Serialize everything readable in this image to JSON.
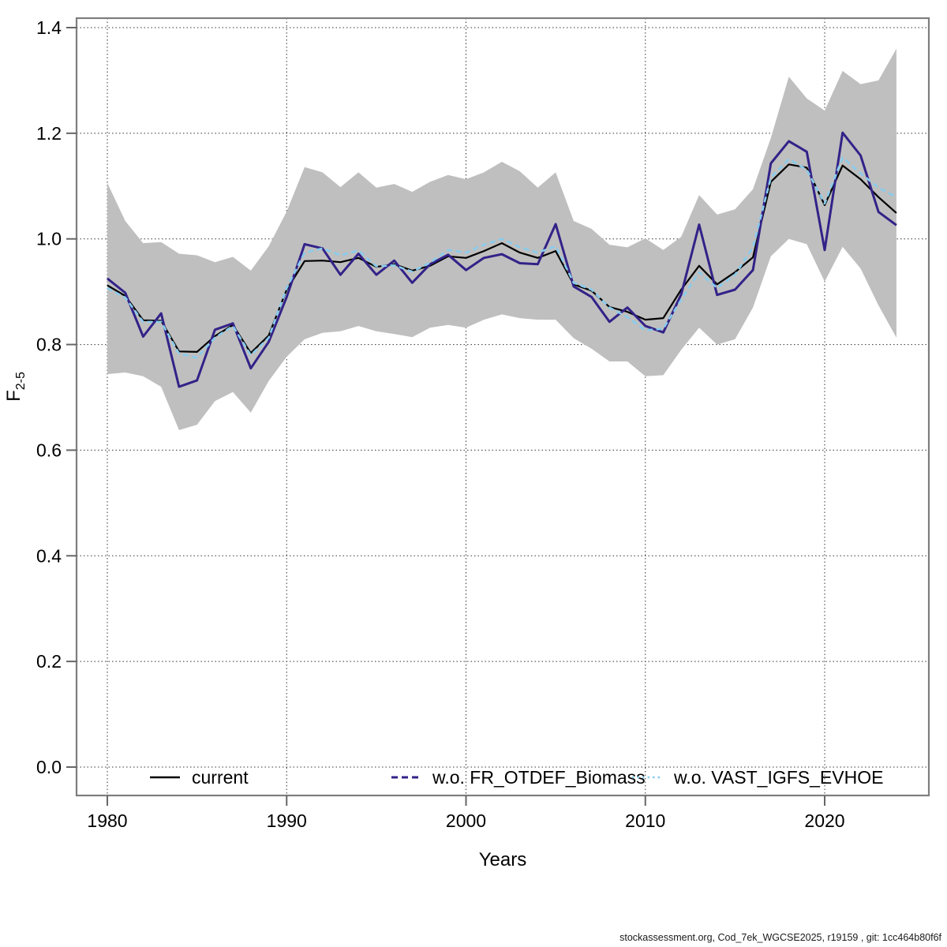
{
  "footer": {
    "text": "stockassessment.org, Cod_7ek_WGCSE2025, r19159 , git: 1cc464b80f6f"
  },
  "chart_data": {
    "type": "line",
    "title": "",
    "xlabel": "Years",
    "ylabel": "F",
    "ylabel_subscript": "2-5",
    "x_ticks": [
      1980,
      1990,
      2000,
      2010,
      2020
    ],
    "y_ticks": [
      0.0,
      0.2,
      0.4,
      0.6,
      0.8,
      1.0,
      1.2,
      1.4
    ],
    "xlim": [
      1978.3,
      2025.7
    ],
    "ylim": [
      -0.05,
      1.42
    ],
    "grid": "dotted gridlines at all x and y ticks",
    "legend_position": "bottom inside plot, no border",
    "band_color": "#bfbfbf",
    "axis_color": "#7e7e7e",
    "years": [
      1980,
      1981,
      1982,
      1983,
      1984,
      1985,
      1986,
      1987,
      1988,
      1989,
      1990,
      1991,
      1992,
      1993,
      1994,
      1995,
      1996,
      1997,
      1998,
      1999,
      2000,
      2001,
      2002,
      2003,
      2004,
      2005,
      2006,
      2007,
      2008,
      2009,
      2010,
      2011,
      2012,
      2013,
      2014,
      2015,
      2016,
      2017,
      2018,
      2019,
      2020,
      2021,
      2022,
      2023,
      2024
    ],
    "band": {
      "name": "confidence interval of current",
      "low": [
        0.744,
        0.747,
        0.74,
        0.72,
        0.638,
        0.648,
        0.693,
        0.71,
        0.671,
        0.731,
        0.777,
        0.81,
        0.822,
        0.825,
        0.835,
        0.825,
        0.82,
        0.814,
        0.832,
        0.837,
        0.832,
        0.847,
        0.857,
        0.85,
        0.847,
        0.847,
        0.812,
        0.792,
        0.768,
        0.768,
        0.74,
        0.742,
        0.79,
        0.832,
        0.8,
        0.81,
        0.87,
        0.967,
        1.0,
        0.99,
        0.919,
        0.985,
        0.944,
        0.874,
        0.813
      ],
      "high": [
        1.106,
        1.034,
        0.992,
        0.994,
        0.972,
        0.969,
        0.956,
        0.966,
        0.94,
        0.986,
        1.052,
        1.136,
        1.126,
        1.098,
        1.126,
        1.097,
        1.104,
        1.089,
        1.108,
        1.121,
        1.113,
        1.126,
        1.146,
        1.128,
        1.097,
        1.126,
        1.034,
        1.019,
        0.989,
        0.984,
        1.001,
        0.979,
        1.004,
        1.083,
        1.046,
        1.056,
        1.094,
        1.191,
        1.307,
        1.266,
        1.243,
        1.318,
        1.293,
        1.3,
        1.36
      ]
    },
    "series": [
      {
        "name": "current",
        "color": "#000000",
        "line_style": "solid",
        "width": 2.2,
        "values": [
          0.912,
          0.892,
          0.846,
          0.845,
          0.787,
          0.786,
          0.816,
          0.837,
          0.784,
          0.817,
          0.904,
          0.958,
          0.959,
          0.956,
          0.964,
          0.947,
          0.952,
          0.94,
          0.949,
          0.967,
          0.964,
          0.977,
          0.992,
          0.974,
          0.964,
          0.977,
          0.914,
          0.902,
          0.871,
          0.862,
          0.847,
          0.85,
          0.904,
          0.949,
          0.914,
          0.937,
          0.965,
          1.108,
          1.141,
          1.135,
          1.064,
          1.139,
          1.113,
          1.079,
          1.049
        ]
      },
      {
        "name": "w.o. FR_OTDEF_Biomass",
        "color": "#332288",
        "line_style": "solid (dashed in legend)",
        "width": 3,
        "values": [
          0.925,
          0.898,
          0.815,
          0.859,
          0.72,
          0.732,
          0.828,
          0.84,
          0.755,
          0.805,
          0.89,
          0.99,
          0.982,
          0.932,
          0.972,
          0.932,
          0.959,
          0.917,
          0.952,
          0.97,
          0.941,
          0.964,
          0.971,
          0.954,
          0.952,
          1.028,
          0.91,
          0.89,
          0.843,
          0.87,
          0.835,
          0.823,
          0.895,
          1.027,
          0.894,
          0.904,
          0.941,
          1.143,
          1.185,
          1.165,
          0.979,
          1.201,
          1.158,
          1.051,
          1.026
        ]
      },
      {
        "name": "w.o. VAST_IGFS_EVHOE",
        "color": "#88ccee",
        "line_style": "dotted",
        "width": 2.6,
        "values": [
          0.907,
          0.889,
          0.843,
          0.843,
          0.783,
          0.775,
          0.813,
          0.835,
          0.78,
          0.813,
          0.907,
          0.974,
          0.982,
          0.969,
          0.978,
          0.948,
          0.95,
          0.938,
          0.955,
          0.979,
          0.974,
          0.989,
          1.0,
          0.984,
          0.974,
          0.986,
          0.917,
          0.904,
          0.87,
          0.852,
          0.827,
          0.83,
          0.885,
          0.937,
          0.907,
          0.932,
          0.984,
          1.116,
          1.151,
          1.131,
          1.067,
          1.154,
          1.124,
          1.097,
          1.079
        ]
      }
    ]
  }
}
